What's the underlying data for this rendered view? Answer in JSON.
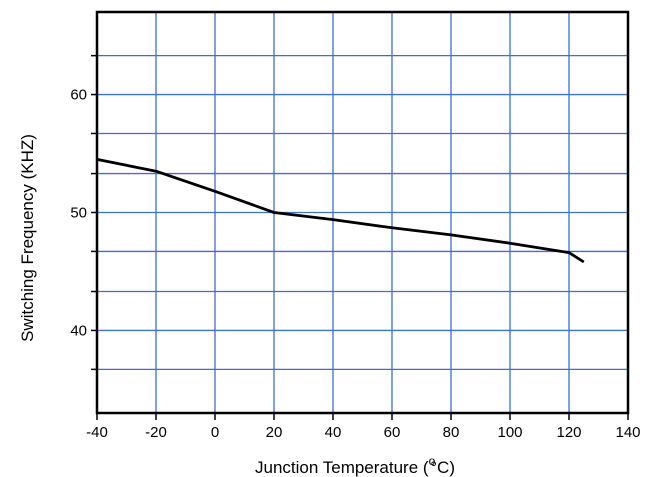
{
  "chart_data": {
    "type": "line",
    "title": "",
    "xlabel": "Junction Temperature (",
    "xlabel_unit": "°C)",
    "xlabel_superscript": "o",
    "ylabel": "Switching Frequency (KHZ)",
    "xlim": [
      -40,
      140
    ],
    "ylim": [
      33,
      67
    ],
    "x_ticks": [
      -40,
      -20,
      0,
      20,
      40,
      60,
      80,
      100,
      120,
      140
    ],
    "x_tick_labels": [
      "-40",
      "-20",
      "0",
      "20",
      "40",
      "60",
      "80",
      "100",
      "120",
      "140"
    ],
    "x_grid": [
      -20,
      0,
      20,
      40,
      60,
      80,
      100,
      120
    ],
    "y_ticks": [
      40,
      50,
      60
    ],
    "y_tick_labels": [
      "40",
      "50",
      "60"
    ],
    "y_grid": [
      36.7,
      40,
      43.3,
      46.7,
      50,
      53.3,
      56.7,
      60,
      63.3
    ],
    "grid": true,
    "colors": {
      "grid": "#3f6fc8",
      "line": "#000000",
      "frame": "#000000"
    },
    "series": [
      {
        "x": [
          -40,
          -20,
          0,
          20,
          40,
          60,
          80,
          100,
          120,
          125
        ],
        "values": [
          54.5,
          53.5,
          51.8,
          50.0,
          49.4,
          48.7,
          48.1,
          47.4,
          46.6,
          45.8
        ]
      }
    ]
  }
}
